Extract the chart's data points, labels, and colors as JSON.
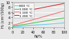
{
  "title": "",
  "xlabel": "Ni/%",
  "ylabel": "H₂ (cm³/100g)",
  "xlim": [
    0,
    100
  ],
  "ylim": [
    0,
    10
  ],
  "yticks": [
    0,
    2,
    4,
    6,
    8,
    10
  ],
  "xticks": [
    0,
    20,
    40,
    60,
    80,
    100
  ],
  "series": [
    {
      "label": "800 °C",
      "color": "#55ccee",
      "x": [
        0,
        100
      ],
      "y": [
        0.2,
        1.8
      ]
    },
    {
      "label": "1 000 °C",
      "color": "#44bb44",
      "x": [
        0,
        100
      ],
      "y": [
        0.4,
        3.8
      ]
    },
    {
      "label": "1 100 °C",
      "color": "#ee6666",
      "x": [
        0,
        100
      ],
      "y": [
        0.8,
        6.5
      ]
    },
    {
      "label": "1 200 °C",
      "color": "#cc2222",
      "x": [
        0,
        100
      ],
      "y": [
        5.5,
        9.5
      ]
    }
  ],
  "background_color": "#e8e8e8",
  "grid_color": "#ffffff",
  "legend_loc": "upper left",
  "legend_fontsize": 3.2,
  "tick_labelsize": 3.5,
  "label_fontsize": 3.8,
  "linewidth": 0.75
}
